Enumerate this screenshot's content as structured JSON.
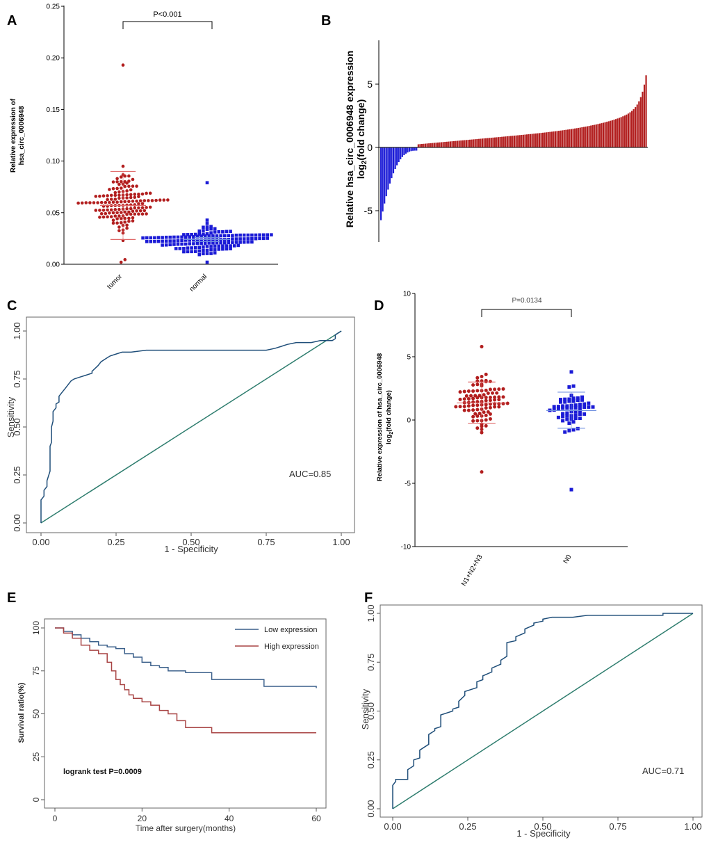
{
  "colors": {
    "red": "#b21e1e",
    "blue": "#1b1bd6",
    "roc": "#1f4e79",
    "diag": "#2e7d6e",
    "km_low": "#3a5f8a",
    "km_high": "#a84444",
    "err_red": "#e06a6a",
    "err_blue": "#7090e0"
  },
  "chart_data": [
    {
      "id": "A",
      "panel_label": "A",
      "type": "scatter",
      "subtype": "dot-plot",
      "ylabel_line1": "Relative expression of",
      "ylabel_line2": "hsa_circ_0006948",
      "ylim": [
        0,
        0.25
      ],
      "yticks": [
        "0.00",
        "0.05",
        "0.10",
        "0.15",
        "0.20",
        "0.25"
      ],
      "ytick_values": [
        0,
        0.05,
        0.1,
        0.15,
        0.2,
        0.25
      ],
      "categories": [
        "tumor",
        "normal"
      ],
      "pvalue": "P<0.001",
      "series": [
        {
          "name": "tumor",
          "color": "red",
          "marker": "circle",
          "mean": 0.057,
          "sd_low": 0.024,
          "sd_high": 0.09,
          "n": 150,
          "max": 0.193,
          "min": 0.002
        },
        {
          "name": "normal",
          "color": "blue",
          "marker": "square",
          "mean": 0.024,
          "sd_low": 0.022,
          "sd_high": 0.026,
          "n": 150,
          "max": 0.079,
          "min": 0.002
        }
      ]
    },
    {
      "id": "B",
      "panel_label": "B",
      "type": "bar",
      "ylabel_line1": "Relative hsa_circ_0006948 expression",
      "ylabel_line2": "log2(fold change)",
      "ylim": [
        -7.5,
        8.5
      ],
      "yticks": [
        "5",
        "0",
        "-5"
      ],
      "ytick_values": [
        5,
        0,
        -5
      ],
      "n_bars": 150,
      "n_negative": 21,
      "min": -5.5,
      "max": 5.7
    },
    {
      "id": "C",
      "panel_label": "C",
      "type": "line",
      "subtype": "roc",
      "xlabel": "1 - Specificity",
      "ylabel": "Sensitivity",
      "xlim": [
        0,
        1
      ],
      "ylim": [
        0,
        1
      ],
      "xticks": [
        "0.00",
        "0.25",
        "0.50",
        "0.75",
        "1.00"
      ],
      "yticks": [
        "0.00",
        "0.25",
        "0.50",
        "0.75",
        "1.00"
      ],
      "tick_values": [
        0,
        0.25,
        0.5,
        0.75,
        1
      ],
      "annotation": "AUC=0.85",
      "x": [
        0,
        0,
        0.01,
        0.01,
        0.02,
        0.02,
        0.03,
        0.03,
        0.035,
        0.035,
        0.04,
        0.04,
        0.05,
        0.05,
        0.06,
        0.06,
        0.07,
        0.08,
        0.09,
        0.1,
        0.11,
        0.13,
        0.15,
        0.17,
        0.17,
        0.19,
        0.2,
        0.21,
        0.22,
        0.23,
        0.25,
        0.27,
        0.3,
        0.35,
        0.4,
        0.5,
        0.6,
        0.7,
        0.75,
        0.78,
        0.8,
        0.82,
        0.85,
        0.88,
        0.9,
        0.93,
        0.95,
        0.97,
        0.98,
        0.98,
        0.99,
        1
      ],
      "y": [
        0,
        0.12,
        0.14,
        0.17,
        0.19,
        0.22,
        0.27,
        0.4,
        0.42,
        0.5,
        0.53,
        0.58,
        0.6,
        0.62,
        0.63,
        0.66,
        0.68,
        0.7,
        0.72,
        0.74,
        0.75,
        0.76,
        0.77,
        0.78,
        0.79,
        0.82,
        0.84,
        0.85,
        0.86,
        0.87,
        0.88,
        0.89,
        0.89,
        0.9,
        0.9,
        0.9,
        0.9,
        0.9,
        0.9,
        0.91,
        0.92,
        0.93,
        0.94,
        0.94,
        0.94,
        0.95,
        0.95,
        0.95,
        0.96,
        0.98,
        0.99,
        1
      ],
      "diagonal": true
    },
    {
      "id": "D",
      "panel_label": "D",
      "type": "scatter",
      "subtype": "dot-plot",
      "ylabel_line1": "Relative expression of hsa_circ_0006948",
      "ylabel_line2": "log2(fold change)",
      "ylim": [
        -10,
        10
      ],
      "yticks": [
        "10",
        "5",
        "0",
        "-5",
        "-10"
      ],
      "ytick_values": [
        10,
        5,
        0,
        -5,
        -10
      ],
      "categories": [
        "N1+N2+N3",
        "N0"
      ],
      "pvalue": "P=0.0134",
      "series": [
        {
          "name": "N1+N2+N3",
          "color": "red",
          "marker": "circle",
          "mean": 1.35,
          "sd_low": -0.25,
          "sd_high": 3.0,
          "n": 95,
          "max": 5.8,
          "min": -4.1
        },
        {
          "name": "N0",
          "color": "blue",
          "marker": "square",
          "mean": 0.75,
          "sd_low": -0.65,
          "sd_high": 2.2,
          "n": 60,
          "max": 3.8,
          "min": -5.5
        }
      ]
    },
    {
      "id": "E",
      "panel_label": "E",
      "type": "line",
      "subtype": "kaplan-meier",
      "xlabel": "Time after surgery(months)",
      "ylabel": "Survival ratio(%)",
      "xlim": [
        0,
        60
      ],
      "ylim": [
        0,
        100
      ],
      "xticks": [
        "0",
        "20",
        "40",
        "60"
      ],
      "xtick_values": [
        0,
        20,
        40,
        60
      ],
      "yticks": [
        "0",
        "25",
        "50",
        "75",
        "100"
      ],
      "ytick_values": [
        0,
        25,
        50,
        75,
        100
      ],
      "annotation": "logrank test P=0.0009",
      "series": [
        {
          "name": "Low expression",
          "color": "km_low",
          "x": [
            0,
            2,
            4,
            6,
            8,
            10,
            12,
            14,
            16,
            18,
            20,
            22,
            24,
            26,
            30,
            36,
            48,
            60
          ],
          "y": [
            100,
            98,
            96,
            94,
            92,
            90,
            89,
            88,
            85,
            83,
            80,
            78,
            77,
            75,
            74,
            70,
            66,
            65
          ]
        },
        {
          "name": "High expression",
          "color": "km_high",
          "x": [
            0,
            2,
            4,
            6,
            8,
            10,
            12,
            13,
            14,
            15,
            16,
            17,
            18,
            20,
            22,
            24,
            26,
            28,
            30,
            36,
            60
          ],
          "y": [
            100,
            97,
            94,
            90,
            87,
            85,
            80,
            75,
            70,
            67,
            64,
            61,
            59,
            57,
            55,
            52,
            50,
            46,
            42,
            39,
            39
          ]
        }
      ]
    },
    {
      "id": "F",
      "panel_label": "F",
      "type": "line",
      "subtype": "roc",
      "xlabel": "1 - Specificity",
      "ylabel": "Sensitivity",
      "xlim": [
        0,
        1
      ],
      "ylim": [
        0,
        1
      ],
      "xticks": [
        "0.00",
        "0.25",
        "0.50",
        "0.75",
        "1.00"
      ],
      "yticks": [
        "0.00",
        "0.25",
        "0.50",
        "0.75",
        "1.00"
      ],
      "tick_values": [
        0,
        0.25,
        0.5,
        0.75,
        1
      ],
      "annotation": "AUC=0.71",
      "x": [
        0,
        0,
        0.01,
        0.01,
        0.05,
        0.05,
        0.07,
        0.07,
        0.09,
        0.09,
        0.12,
        0.12,
        0.14,
        0.14,
        0.16,
        0.16,
        0.2,
        0.2,
        0.22,
        0.22,
        0.24,
        0.24,
        0.28,
        0.28,
        0.3,
        0.3,
        0.33,
        0.33,
        0.36,
        0.36,
        0.38,
        0.38,
        0.41,
        0.41,
        0.44,
        0.44,
        0.47,
        0.47,
        0.5,
        0.5,
        0.53,
        0.53,
        0.55,
        0.55,
        0.6,
        0.6,
        0.65,
        0.65,
        0.9,
        0.9,
        1
      ],
      "y": [
        0,
        0.12,
        0.14,
        0.15,
        0.15,
        0.2,
        0.22,
        0.25,
        0.26,
        0.3,
        0.33,
        0.38,
        0.4,
        0.41,
        0.42,
        0.48,
        0.5,
        0.51,
        0.52,
        0.55,
        0.58,
        0.6,
        0.62,
        0.65,
        0.66,
        0.68,
        0.7,
        0.72,
        0.74,
        0.76,
        0.78,
        0.85,
        0.86,
        0.88,
        0.9,
        0.92,
        0.94,
        0.95,
        0.96,
        0.97,
        0.98,
        0.98,
        0.98,
        0.98,
        0.98,
        0.98,
        0.99,
        0.99,
        0.99,
        1,
        1
      ],
      "diagonal": true
    }
  ]
}
